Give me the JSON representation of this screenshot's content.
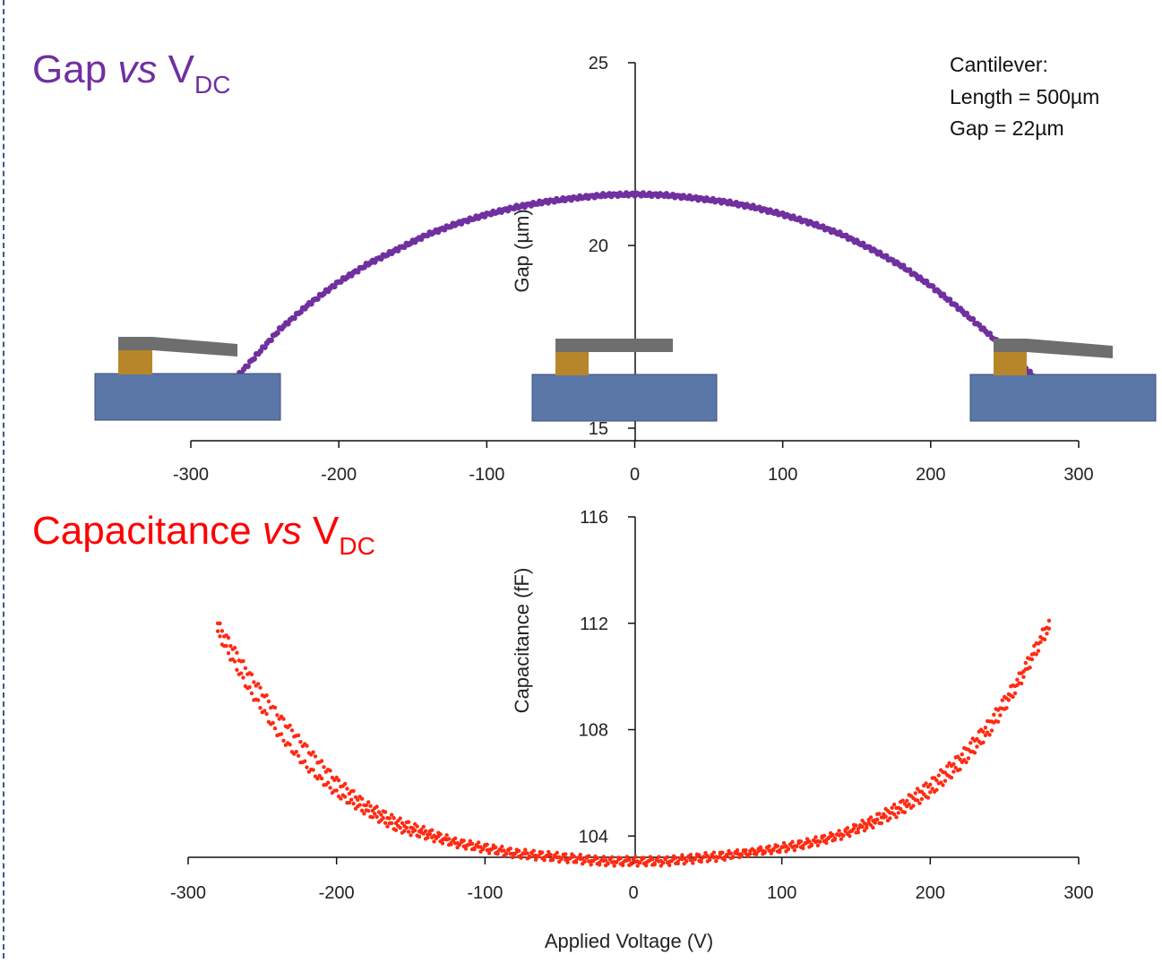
{
  "chart_data": [
    {
      "type": "scatter",
      "title_main": "Gap ",
      "title_vs": "vs",
      "title_v": " V",
      "title_sub": "DC",
      "title_color": "#7030a0",
      "ylabel": "Gap (µm)",
      "xlim": [
        -300,
        300
      ],
      "ylim": [
        15,
        25
      ],
      "yticks": [
        "15",
        "20",
        "25"
      ],
      "xticks": [
        "-300",
        "-200",
        "-100",
        "0",
        "100",
        "200",
        "300"
      ],
      "series": [
        {
          "color": "#7030a0",
          "x": [
            -280,
            -260,
            -240,
            -220,
            -200,
            -180,
            -160,
            -140,
            -120,
            -100,
            -80,
            -60,
            -40,
            -20,
            0,
            20,
            40,
            60,
            80,
            100,
            120,
            140,
            160,
            180,
            200,
            220,
            240,
            260,
            280
          ],
          "y": [
            15.9,
            16.8,
            17.7,
            18.4,
            19.0,
            19.5,
            19.9,
            20.3,
            20.6,
            20.85,
            21.05,
            21.2,
            21.3,
            21.38,
            21.4,
            21.38,
            21.3,
            21.2,
            21.05,
            20.85,
            20.6,
            20.3,
            19.9,
            19.45,
            18.9,
            18.25,
            17.55,
            16.8,
            16.0
          ]
        }
      ],
      "annotation": {
        "line1": "Cantilever:",
        "line2": "Length = 500µm",
        "line3": "Gap = 22µm"
      },
      "inset_colors": {
        "substrate": "#5b77a8",
        "anchor": "#b8862a",
        "beam": "#6e6e6e"
      }
    },
    {
      "type": "scatter",
      "title_main": "Capacitance ",
      "title_vs": "vs",
      "title_v": " V",
      "title_sub": "DC",
      "title_color": "#ff0000",
      "ylabel": "Capacitance (fF)",
      "xlabel": "Applied Voltage (V)",
      "xlim": [
        -300,
        300
      ],
      "ylim": [
        100,
        116
      ],
      "yticks": [
        "104",
        "108",
        "112",
        "116"
      ],
      "xticks": [
        "-300",
        "-200",
        "-100",
        "0",
        "100",
        "200",
        "300"
      ],
      "series": [
        {
          "color": "#ff2a12",
          "x": [
            -280,
            -260,
            -240,
            -220,
            -200,
            -180,
            -160,
            -140,
            -120,
            -100,
            -80,
            -60,
            -40,
            -20,
            0,
            20,
            40,
            60,
            80,
            100,
            120,
            140,
            160,
            180,
            200,
            220,
            240,
            260,
            280
          ],
          "y": [
            112.0,
            110.2,
            108.6,
            107.3,
            106.1,
            105.2,
            104.6,
            104.2,
            103.8,
            103.6,
            103.4,
            103.3,
            103.2,
            103.1,
            103.1,
            103.1,
            103.2,
            103.3,
            103.4,
            103.6,
            103.8,
            104.1,
            104.6,
            105.2,
            106.0,
            107.0,
            108.3,
            110.0,
            112.1
          ]
        },
        {
          "color": "#ff2a12",
          "x": [
            -280,
            -260,
            -240,
            -220,
            -200,
            -180,
            -160,
            -140,
            -120,
            -100,
            -80,
            -60,
            -40,
            -20,
            0,
            20,
            40,
            60,
            80,
            100,
            120,
            140,
            160,
            180,
            200,
            220,
            240,
            260,
            280
          ],
          "y": [
            111.6,
            109.6,
            107.9,
            106.6,
            105.6,
            104.9,
            104.3,
            104.0,
            103.7,
            103.5,
            103.3,
            103.2,
            103.1,
            103.0,
            103.0,
            103.0,
            103.1,
            103.2,
            103.4,
            103.5,
            103.7,
            104.0,
            104.4,
            104.9,
            105.6,
            106.6,
            107.9,
            109.7,
            111.8
          ]
        }
      ]
    }
  ]
}
